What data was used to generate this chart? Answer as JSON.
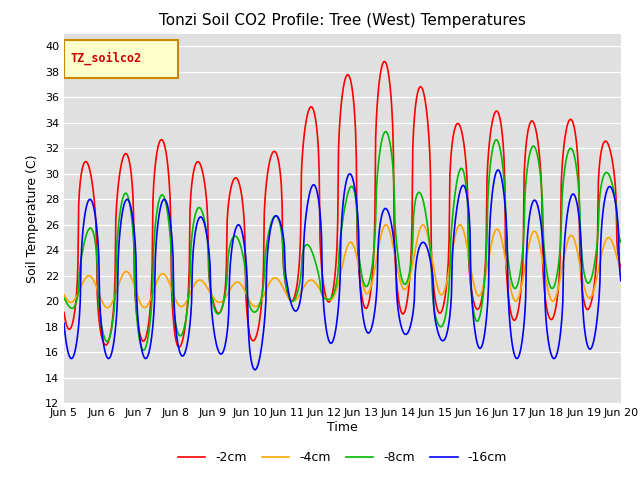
{
  "title": "Tonzi Soil CO2 Profile: Tree (West) Temperatures",
  "ylabel": "Soil Temperature (C)",
  "xlabel": "Time",
  "legend_label": "TZ_soilco2",
  "series_labels": [
    "-2cm",
    "-4cm",
    "-8cm",
    "-16cm"
  ],
  "series_colors": [
    "#ff0000",
    "#ffa500",
    "#00bb00",
    "#0000ff"
  ],
  "ylim": [
    12,
    41
  ],
  "yticks": [
    12,
    14,
    16,
    18,
    20,
    22,
    24,
    26,
    28,
    30,
    32,
    34,
    36,
    38,
    40
  ],
  "bg_color": "#e0e0e0",
  "line_width": 1.2,
  "xtick_labels": [
    "Jun 5",
    "Jun 6",
    "Jun 7",
    "Jun 8",
    "Jun 9",
    "Jun 10",
    "Jun 11",
    "Jun 12",
    "Jun 13",
    "Jun 14",
    "Jun 15",
    "Jun 16",
    "Jun 17",
    "Jun 18",
    "Jun 19",
    "Jun 20"
  ],
  "n_days": 15,
  "pts_per_day": 48,
  "daily_highs_2cm": [
    34.0,
    29.0,
    33.0,
    32.5,
    30.0,
    29.5,
    33.0,
    36.5,
    38.5,
    39.0,
    35.5,
    33.0,
    36.0,
    33.0,
    35.0,
    31.0
  ],
  "daily_lows_2cm": [
    18.0,
    16.5,
    17.0,
    16.0,
    19.5,
    16.5,
    20.0,
    20.0,
    19.5,
    19.0,
    19.0,
    19.5,
    18.5,
    18.5,
    19.0,
    22.0
  ],
  "daily_highs_4cm": [
    22.0,
    22.0,
    22.5,
    22.0,
    21.5,
    21.5,
    22.0,
    21.5,
    26.0,
    26.0,
    26.0,
    26.0,
    25.5,
    25.5,
    25.0,
    25.0
  ],
  "daily_lows_4cm": [
    20.0,
    19.5,
    19.5,
    19.5,
    20.0,
    19.5,
    20.0,
    20.0,
    20.5,
    21.0,
    20.5,
    20.5,
    20.0,
    20.0,
    20.0,
    21.5
  ],
  "daily_highs_8cm": [
    22.0,
    27.5,
    29.0,
    28.0,
    27.0,
    24.0,
    28.0,
    22.0,
    32.0,
    34.0,
    25.0,
    33.0,
    32.5,
    32.0,
    32.0,
    29.0
  ],
  "daily_lows_8cm": [
    20.0,
    17.0,
    16.0,
    17.0,
    19.0,
    19.0,
    20.0,
    20.0,
    21.0,
    22.0,
    18.0,
    18.0,
    21.0,
    21.0,
    21.0,
    24.0
  ],
  "daily_highs_16cm": [
    28.0,
    28.0,
    28.0,
    28.0,
    26.0,
    26.0,
    27.0,
    30.0,
    30.0,
    26.0,
    24.0,
    31.0,
    30.0,
    27.0,
    29.0,
    29.0
  ],
  "daily_lows_16cm": [
    15.5,
    15.5,
    15.5,
    15.5,
    16.5,
    13.5,
    20.0,
    16.5,
    17.5,
    17.5,
    17.0,
    16.5,
    15.5,
    15.5,
    15.5,
    19.5
  ],
  "phase_2cm": 0.38,
  "phase_4cm": 0.42,
  "phase_8cm": 0.4,
  "phase_16cm": 0.45,
  "sharpness_2cm": 2.5,
  "sharpness_4cm": 1.0,
  "sharpness_8cm": 1.8,
  "sharpness_16cm": 2.0
}
